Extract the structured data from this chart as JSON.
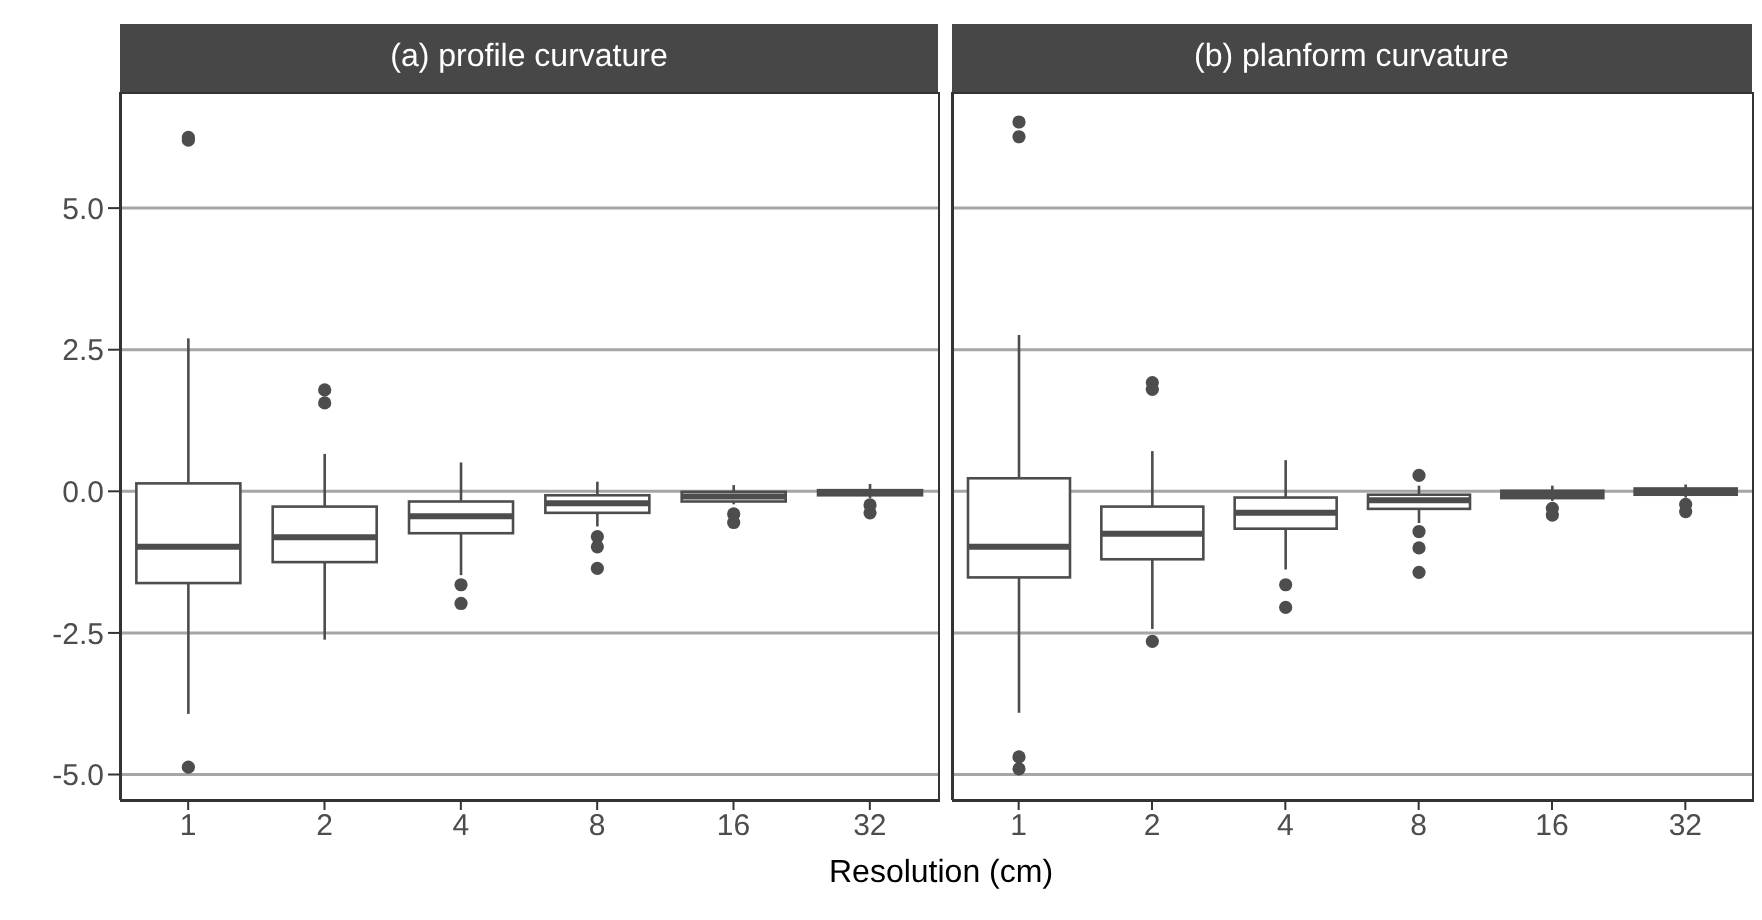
{
  "chart_data": [
    {
      "type": "box",
      "title": "(a) profile curvature",
      "xlabel": "Resolution (cm)",
      "categories": [
        "1",
        "2",
        "4",
        "8",
        "16",
        "32"
      ],
      "color": "#4d4d4d",
      "ylim": [
        -5.45,
        7.05
      ],
      "yticks": [
        {
          "value": -5,
          "label": "-5.0"
        },
        {
          "value": -2.5,
          "label": "-2.5"
        },
        {
          "value": 0,
          "label": "0.0"
        },
        {
          "value": 2.5,
          "label": "2.5"
        },
        {
          "value": 5,
          "label": "5.0"
        }
      ],
      "grid": "y",
      "boxes": [
        {
          "low": -3.93,
          "q1": -1.62,
          "median": -0.98,
          "q3": 0.14,
          "high": 2.7,
          "outliers": [
            6.25,
            6.2,
            -4.87
          ]
        },
        {
          "low": -2.62,
          "q1": -1.25,
          "median": -0.81,
          "q3": -0.27,
          "high": 0.66,
          "outliers": [
            1.79,
            1.56
          ]
        },
        {
          "low": -1.48,
          "q1": -0.74,
          "median": -0.44,
          "q3": -0.18,
          "high": 0.51,
          "outliers": [
            -1.65,
            -1.98
          ]
        },
        {
          "low": -0.62,
          "q1": -0.38,
          "median": -0.21,
          "q3": -0.07,
          "high": 0.17,
          "outliers": [
            -0.8,
            -0.98,
            -1.36
          ]
        },
        {
          "low": -0.23,
          "q1": -0.18,
          "median": -0.09,
          "q3": -0.01,
          "high": 0.11,
          "outliers": [
            -0.4,
            -0.55
          ]
        },
        {
          "low": -0.12,
          "q1": -0.07,
          "median": -0.02,
          "q3": 0.02,
          "high": 0.13,
          "outliers": [
            -0.24,
            -0.38
          ]
        }
      ]
    },
    {
      "type": "box",
      "title": "(b) planform curvature",
      "categories": [
        "1",
        "2",
        "4",
        "8",
        "16",
        "32"
      ],
      "color": "#4d4d4d",
      "ylim": [
        -5.45,
        7.05
      ],
      "yticks": [
        -5,
        -2.5,
        0,
        2.5,
        5
      ],
      "grid": "y",
      "tick_labels": "x",
      "boxes": [
        {
          "low": -3.91,
          "q1": -1.52,
          "median": -0.98,
          "q3": 0.23,
          "high": 2.76,
          "outliers": [
            6.52,
            6.26,
            -4.69,
            -4.9
          ]
        },
        {
          "low": -2.43,
          "q1": -1.2,
          "median": -0.75,
          "q3": -0.27,
          "high": 0.71,
          "outliers": [
            1.92,
            1.8,
            -2.65
          ]
        },
        {
          "low": -1.38,
          "q1": -0.66,
          "median": -0.38,
          "q3": -0.11,
          "high": 0.55,
          "outliers": [
            -1.65,
            -2.05
          ]
        },
        {
          "low": -0.56,
          "q1": -0.31,
          "median": -0.16,
          "q3": -0.06,
          "high": 0.1,
          "outliers": [
            0.28,
            -0.71,
            -1.0,
            -1.43
          ]
        },
        {
          "low": -0.17,
          "q1": -0.12,
          "median": -0.05,
          "q3": 0.01,
          "high": 0.1,
          "outliers": [
            -0.3,
            -0.42
          ]
        },
        {
          "low": -0.11,
          "q1": -0.06,
          "median": 0,
          "q3": 0.05,
          "high": 0.12,
          "outliers": [
            -0.23,
            -0.36
          ]
        }
      ]
    }
  ]
}
